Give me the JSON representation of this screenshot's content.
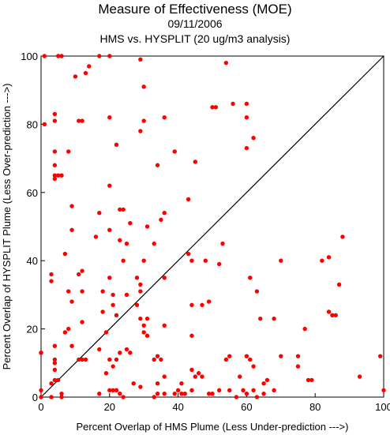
{
  "chart_data": {
    "type": "scatter",
    "title": "Measure of Effectiveness (MOE)",
    "subtitle_date": "09/11/2006",
    "subtitle_analysis": "HMS vs. HYSPLIT  (20 ug/m3 analysis)",
    "xlabel": "Percent Overlap of HMS Plume (Less Under-prediction --->)",
    "ylabel": "Percent Overlap of HYSPLIT Plume (Less Over-prediction --->)",
    "xlim": [
      0,
      100
    ],
    "ylim": [
      0,
      100
    ],
    "x_ticks": [
      "0",
      "20",
      "40",
      "60",
      "80",
      "100"
    ],
    "y_ticks": [
      "0",
      "20",
      "40",
      "60",
      "80",
      "100"
    ],
    "grid": false,
    "reference_line": "diagonal y = x",
    "point_color": "#ff0000",
    "points": [
      [
        1,
        100
      ],
      [
        5,
        100
      ],
      [
        6,
        100
      ],
      [
        17,
        100
      ],
      [
        20,
        100
      ],
      [
        29,
        99
      ],
      [
        54,
        98
      ],
      [
        14,
        97
      ],
      [
        13,
        95
      ],
      [
        10,
        94
      ],
      [
        30,
        91
      ],
      [
        4,
        83
      ],
      [
        4,
        81
      ],
      [
        1,
        80
      ],
      [
        11,
        81
      ],
      [
        12,
        81
      ],
      [
        20,
        82
      ],
      [
        30,
        81
      ],
      [
        36,
        82
      ],
      [
        56,
        86
      ],
      [
        60,
        86
      ],
      [
        50,
        85
      ],
      [
        51,
        85
      ],
      [
        60,
        82
      ],
      [
        62,
        76
      ],
      [
        60,
        73
      ],
      [
        29,
        78
      ],
      [
        22,
        74
      ],
      [
        4,
        72
      ],
      [
        8,
        72
      ],
      [
        39,
        72
      ],
      [
        34,
        68
      ],
      [
        45,
        69
      ],
      [
        4,
        68
      ],
      [
        5,
        65
      ],
      [
        4,
        64
      ],
      [
        4,
        65
      ],
      [
        6,
        65
      ],
      [
        20,
        62
      ],
      [
        43,
        58
      ],
      [
        9,
        56
      ],
      [
        24,
        55
      ],
      [
        23,
        55
      ],
      [
        17,
        54
      ],
      [
        36,
        54
      ],
      [
        35,
        52
      ],
      [
        31,
        50
      ],
      [
        26,
        51
      ],
      [
        9,
        49
      ],
      [
        20,
        49
      ],
      [
        16,
        47
      ],
      [
        23,
        46
      ],
      [
        25,
        45
      ],
      [
        88,
        47
      ],
      [
        33,
        45
      ],
      [
        53,
        45
      ],
      [
        43,
        42
      ],
      [
        7,
        42
      ],
      [
        24,
        40
      ],
      [
        30,
        40
      ],
      [
        44,
        40
      ],
      [
        48,
        40
      ],
      [
        52,
        39
      ],
      [
        70,
        40
      ],
      [
        82,
        40
      ],
      [
        84,
        41
      ],
      [
        3,
        36
      ],
      [
        3,
        34
      ],
      [
        11,
        36
      ],
      [
        12,
        37
      ],
      [
        20,
        35
      ],
      [
        28,
        35
      ],
      [
        29,
        33
      ],
      [
        36,
        35
      ],
      [
        61,
        35
      ],
      [
        63,
        31
      ],
      [
        87,
        33
      ],
      [
        8,
        31
      ],
      [
        12,
        31
      ],
      [
        9,
        28
      ],
      [
        18,
        31
      ],
      [
        21,
        30
      ],
      [
        29,
        31
      ],
      [
        25,
        30
      ],
      [
        21,
        27
      ],
      [
        28,
        27
      ],
      [
        47,
        27
      ],
      [
        49,
        28
      ],
      [
        44,
        27
      ],
      [
        18,
        25
      ],
      [
        29,
        23
      ],
      [
        31,
        23
      ],
      [
        30,
        21
      ],
      [
        36,
        21
      ],
      [
        22,
        24
      ],
      [
        84,
        25
      ],
      [
        85,
        24
      ],
      [
        86,
        24
      ],
      [
        68,
        23
      ],
      [
        64,
        23
      ],
      [
        8,
        20
      ],
      [
        12,
        22
      ],
      [
        7,
        19
      ],
      [
        30,
        19
      ],
      [
        31,
        18
      ],
      [
        19,
        19
      ],
      [
        77,
        20
      ],
      [
        44,
        18
      ],
      [
        17,
        14
      ],
      [
        9,
        15
      ],
      [
        4,
        15
      ],
      [
        11,
        11
      ],
      [
        12,
        11
      ],
      [
        13,
        11
      ],
      [
        4,
        11
      ],
      [
        4,
        10
      ],
      [
        20,
        11
      ],
      [
        23,
        13
      ],
      [
        25,
        14
      ],
      [
        26,
        13
      ],
      [
        22,
        11
      ],
      [
        21,
        9
      ],
      [
        33,
        11
      ],
      [
        34,
        12
      ],
      [
        35,
        11
      ],
      [
        54,
        11
      ],
      [
        55,
        12
      ],
      [
        60,
        12
      ],
      [
        61,
        11
      ],
      [
        70,
        12
      ],
      [
        75,
        12
      ],
      [
        0,
        13
      ],
      [
        0,
        13
      ],
      [
        4,
        8
      ],
      [
        4,
        5
      ],
      [
        5,
        5
      ],
      [
        3,
        4
      ],
      [
        19,
        7
      ],
      [
        27,
        4
      ],
      [
        34,
        4
      ],
      [
        36,
        6
      ],
      [
        41,
        4
      ],
      [
        46,
        7
      ],
      [
        47,
        6
      ],
      [
        45,
        6
      ],
      [
        44,
        8
      ],
      [
        58,
        6
      ],
      [
        62,
        9
      ],
      [
        65,
        4
      ],
      [
        66,
        5
      ],
      [
        75,
        9
      ],
      [
        78,
        5
      ],
      [
        79,
        5
      ],
      [
        93,
        6
      ],
      [
        99,
        12
      ],
      [
        0,
        2
      ],
      [
        0,
        0
      ],
      [
        3,
        0
      ],
      [
        6,
        0
      ],
      [
        6,
        1
      ],
      [
        17,
        1
      ],
      [
        20,
        2
      ],
      [
        21,
        2
      ],
      [
        22,
        2
      ],
      [
        23,
        1
      ],
      [
        24,
        0
      ],
      [
        29,
        3
      ],
      [
        33,
        0
      ],
      [
        34,
        1
      ],
      [
        36,
        1
      ],
      [
        39,
        1
      ],
      [
        40,
        2
      ],
      [
        41,
        1
      ],
      [
        42,
        1
      ],
      [
        44,
        2
      ],
      [
        49,
        1
      ],
      [
        50,
        1
      ],
      [
        52,
        2
      ],
      [
        55,
        2
      ],
      [
        57,
        0
      ],
      [
        59,
        2
      ],
      [
        60,
        1
      ],
      [
        62,
        2
      ],
      [
        63,
        0
      ],
      [
        65,
        1
      ],
      [
        68,
        2
      ],
      [
        100,
        2
      ]
    ]
  }
}
